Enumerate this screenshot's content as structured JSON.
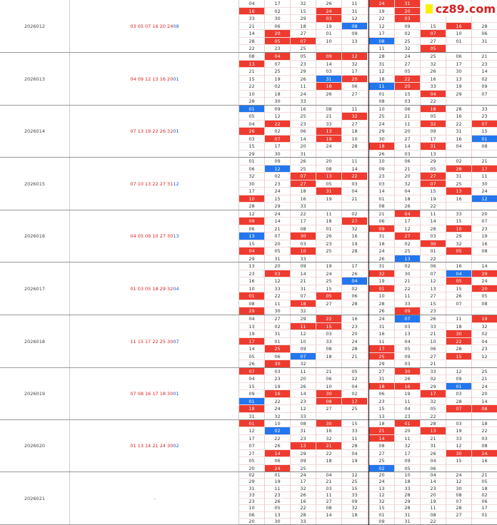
{
  "logo": {
    "text": "cz89.com"
  },
  "rows": [
    {
      "issue": "2026012",
      "red": "03 05 07 16 20 24",
      "blue": "08",
      "grid": [
        [
          "04",
          "17",
          "32",
          "26",
          "11",
          "24",
          "31",
          "20",
          "",
          ""
        ],
        [
          "16",
          "02",
          "15",
          "24",
          "31",
          "19",
          "20",
          "",
          "",
          ""
        ],
        [
          "33",
          "30",
          "29",
          "03",
          "12",
          "22",
          "03",
          "",
          "",
          ""
        ],
        [
          "21",
          "06",
          "18",
          "19",
          "08",
          "12",
          "09",
          "15",
          "16",
          "28"
        ],
        [
          "14",
          "20",
          "27",
          "01",
          "09",
          "17",
          "02",
          "07",
          "10",
          "06"
        ],
        [
          "28",
          "05",
          "07",
          "10",
          "13",
          "08",
          "25",
          "27",
          "01",
          "31"
        ],
        [
          "22",
          "23",
          "25",
          "",
          "",
          "11",
          "32",
          "05",
          "",
          ""
        ]
      ]
    },
    {
      "issue": "2026013",
      "red": "04 09 12 13 16 20",
      "blue": "01",
      "grid": [
        [
          "08",
          "04",
          "05",
          "09",
          "12",
          "28",
          "24",
          "25",
          "06",
          "21"
        ],
        [
          "13",
          "07",
          "23",
          "14",
          "32",
          "31",
          "27",
          "32",
          "17",
          "23"
        ],
        [
          "21",
          "25",
          "29",
          "03",
          "17",
          "12",
          "05",
          "26",
          "30",
          "14"
        ],
        [
          "15",
          "19",
          "26",
          "31",
          "20",
          "18",
          "22",
          "16",
          "13",
          "02"
        ],
        [
          "22",
          "02",
          "11",
          "16",
          "06",
          "11",
          "20",
          "33",
          "19",
          "09"
        ],
        [
          "10",
          "18",
          "24",
          "26",
          "27",
          "01",
          "15",
          "04",
          "29",
          "07"
        ],
        [
          "28",
          "30",
          "33",
          "",
          "",
          "08",
          "03",
          "22",
          "",
          ""
        ]
      ]
    },
    {
      "issue": "2026014",
      "red": "07 13 19 22 26 32",
      "blue": "01",
      "grid": [
        [
          "01",
          "09",
          "16",
          "08",
          "11",
          "10",
          "06",
          "18",
          "28",
          "33"
        ],
        [
          "05",
          "12",
          "25",
          "21",
          "32",
          "25",
          "21",
          "05",
          "16",
          "23"
        ],
        [
          "04",
          "22",
          "23",
          "33",
          "27",
          "24",
          "11",
          "32",
          "22",
          "07"
        ],
        [
          "26",
          "02",
          "06",
          "13",
          "18",
          "29",
          "20",
          "09",
          "31",
          "15"
        ],
        [
          "03",
          "07",
          "14",
          "19",
          "10",
          "30",
          "27",
          "17",
          "16",
          "01"
        ],
        [
          "15",
          "17",
          "20",
          "24",
          "28",
          "18",
          "14",
          "31",
          "04",
          "08"
        ],
        [
          "29",
          "30",
          "31",
          "",
          "",
          "26",
          "03",
          "13",
          "",
          ""
        ]
      ]
    },
    {
      "issue": "2026015",
      "red": "07 10 13 22 27 31",
      "blue": "12",
      "grid": [
        [
          "01",
          "09",
          "26",
          "20",
          "11",
          "10",
          "06",
          "29",
          "02",
          "21"
        ],
        [
          "06",
          "12",
          "25",
          "08",
          "14",
          "09",
          "21",
          "05",
          "28",
          "17"
        ],
        [
          "32",
          "02",
          "07",
          "13",
          "22",
          "23",
          "20",
          "27",
          "31",
          "11"
        ],
        [
          "30",
          "23",
          "27",
          "05",
          "03",
          "03",
          "32",
          "07",
          "25",
          "30"
        ],
        [
          "17",
          "24",
          "18",
          "31",
          "04",
          "14",
          "04",
          "15",
          "13",
          "24"
        ],
        [
          "10",
          "15",
          "16",
          "19",
          "21",
          "01",
          "18",
          "19",
          "16",
          "12"
        ],
        [
          "28",
          "29",
          "33",
          "",
          "",
          "08",
          "26",
          "22",
          "",
          ""
        ]
      ]
    },
    {
      "issue": "2026016",
      "red": "04 05 09 10 27 30",
      "blue": "13",
      "grid": [
        [
          "12",
          "24",
          "22",
          "11",
          "02",
          "21",
          "04",
          "11",
          "33",
          "20"
        ],
        [
          "09",
          "14",
          "17",
          "18",
          "27",
          "06",
          "17",
          "14",
          "15",
          "07"
        ],
        [
          "06",
          "21",
          "08",
          "01",
          "32",
          "09",
          "12",
          "28",
          "10",
          "23"
        ],
        [
          "13",
          "07",
          "30",
          "26",
          "16",
          "31",
          "27",
          "03",
          "29",
          "19"
        ],
        [
          "15",
          "20",
          "03",
          "23",
          "19",
          "18",
          "02",
          "30",
          "32",
          "16"
        ],
        [
          "04",
          "05",
          "10",
          "25",
          "28",
          "24",
          "25",
          "01",
          "05",
          "08"
        ],
        [
          "29",
          "31",
          "33",
          "",
          "",
          "26",
          "13",
          "22",
          "",
          ""
        ]
      ]
    },
    {
      "issue": "2026017",
      "red": "01 03 05 18 29 32",
      "blue": "04",
      "grid": [
        [
          "13",
          "20",
          "09",
          "19",
          "17",
          "31",
          "02",
          "06",
          "16",
          "14"
        ],
        [
          "23",
          "03",
          "14",
          "24",
          "26",
          "32",
          "30",
          "07",
          "04",
          "29"
        ],
        [
          "16",
          "12",
          "21",
          "25",
          "04",
          "19",
          "21",
          "12",
          "05",
          "24"
        ],
        [
          "10",
          "33",
          "31",
          "15",
          "02",
          "01",
          "22",
          "13",
          "15",
          "20"
        ],
        [
          "01",
          "22",
          "07",
          "05",
          "06",
          "10",
          "11",
          "27",
          "26",
          "05"
        ],
        [
          "08",
          "11",
          "18",
          "27",
          "28",
          "28",
          "33",
          "15",
          "07",
          "08"
        ],
        [
          "29",
          "30",
          "32",
          "",
          "",
          "26",
          "09",
          "23",
          "",
          ""
        ]
      ]
    },
    {
      "issue": "2026018",
      "red": "11 15 17 22 25 30",
      "blue": "07",
      "grid": [
        [
          "04",
          "27",
          "29",
          "22",
          "16",
          "24",
          "07",
          "26",
          "11",
          "19"
        ],
        [
          "13",
          "02",
          "11",
          "15",
          "23",
          "31",
          "03",
          "33",
          "18",
          "32"
        ],
        [
          "19",
          "31",
          "12",
          "03",
          "20",
          "16",
          "13",
          "21",
          "30",
          "02"
        ],
        [
          "17",
          "01",
          "10",
          "33",
          "24",
          "11",
          "04",
          "10",
          "22",
          "04"
        ],
        [
          "14",
          "25",
          "09",
          "08",
          "28",
          "17",
          "05",
          "06",
          "28",
          "23"
        ],
        [
          "05",
          "06",
          "07",
          "18",
          "21",
          "25",
          "09",
          "27",
          "15",
          "12"
        ],
        [
          "26",
          "30",
          "32",
          "",
          "",
          "29",
          "03",
          "21",
          "",
          ""
        ]
      ]
    },
    {
      "issue": "2026019",
      "red": "07 08 16 17 18 30",
      "blue": "01",
      "grid": [
        [
          "07",
          "03",
          "11",
          "21",
          "05",
          "27",
          "30",
          "33",
          "12",
          "25"
        ],
        [
          "04",
          "23",
          "20",
          "06",
          "12",
          "31",
          "26",
          "02",
          "09",
          "21"
        ],
        [
          "15",
          "19",
          "26",
          "10",
          "04",
          "18",
          "16",
          "29",
          "01",
          "24"
        ],
        [
          "09",
          "16",
          "14",
          "30",
          "02",
          "06",
          "19",
          "17",
          "03",
          "20"
        ],
        [
          "01",
          "22",
          "23",
          "08",
          "17",
          "23",
          "11",
          "32",
          "28",
          "14"
        ],
        [
          "18",
          "24",
          "12",
          "27",
          "25",
          "15",
          "04",
          "05",
          "07",
          "08"
        ],
        [
          "31",
          "32",
          "33",
          "",
          "",
          "13",
          "23",
          "22",
          "",
          ""
        ]
      ]
    },
    {
      "issue": "2026020",
      "red": "01 13 14 21 24 30",
      "blue": "02",
      "grid": [
        [
          "01",
          "10",
          "08",
          "30",
          "15",
          "18",
          "01",
          "28",
          "03",
          "18"
        ],
        [
          "12",
          "02",
          "31",
          "16",
          "33",
          "21",
          "20",
          "13",
          "19",
          "22"
        ],
        [
          "17",
          "22",
          "23",
          "32",
          "11",
          "14",
          "11",
          "21",
          "33",
          "03"
        ],
        [
          "07",
          "26",
          "13",
          "21",
          "28",
          "08",
          "32",
          "31",
          "12",
          "08"
        ],
        [
          "27",
          "14",
          "29",
          "22",
          "04",
          "27",
          "17",
          "26",
          "30",
          "24"
        ],
        [
          "05",
          "06",
          "09",
          "18",
          "19",
          "25",
          "09",
          "04",
          "15",
          "16"
        ],
        [
          "20",
          "24",
          "25",
          "",
          "",
          "02",
          "05",
          "06",
          "",
          ""
        ]
      ]
    },
    {
      "issue": "2026021",
      "red": "",
      "blue": "",
      "dash": "-",
      "grid": [
        [
          "02",
          "01",
          "24",
          "04",
          "12",
          "20",
          "10",
          "04",
          "24",
          "21"
        ],
        [
          "29",
          "19",
          "17",
          "21",
          "25",
          "24",
          "18",
          "14",
          "12",
          "05"
        ],
        [
          "31",
          "11",
          "32",
          "03",
          "15",
          "13",
          "33",
          "23",
          "30",
          "18"
        ],
        [
          "33",
          "23",
          "26",
          "11",
          "33",
          "12",
          "28",
          "20",
          "08",
          "02"
        ],
        [
          "23",
          "26",
          "16",
          "27",
          "09",
          "32",
          "29",
          "19",
          "07",
          "06"
        ],
        [
          "10",
          "05",
          "22",
          "08",
          "32",
          "15",
          "28",
          "11",
          "28",
          "17"
        ],
        [
          "06",
          "13",
          "28",
          "14",
          "18",
          "01",
          "31",
          "08",
          "27",
          "01"
        ],
        [
          "20",
          "30",
          "33",
          "",
          "",
          "09",
          "31",
          "22",
          "",
          ""
        ]
      ]
    }
  ],
  "highlights_red": {
    "0": [
      [
        0,
        5
      ],
      [
        0,
        6
      ],
      [
        1,
        0
      ],
      [
        1,
        3
      ],
      [
        1,
        6
      ],
      [
        2,
        3
      ],
      [
        2,
        6
      ],
      [
        3,
        8
      ],
      [
        4,
        1
      ],
      [
        4,
        7
      ],
      [
        5,
        1
      ],
      [
        5,
        2
      ],
      [
        6,
        7
      ]
    ],
    "1": [
      [
        0,
        1
      ],
      [
        0,
        3
      ],
      [
        0,
        4
      ],
      [
        1,
        0
      ],
      [
        3,
        4
      ],
      [
        3,
        6
      ],
      [
        4,
        3
      ],
      [
        4,
        6
      ],
      [
        5,
        7
      ]
    ],
    "2": [
      [
        0,
        7
      ],
      [
        1,
        4
      ],
      [
        2,
        1
      ],
      [
        2,
        7
      ],
      [
        2,
        9
      ],
      [
        3,
        0
      ],
      [
        3,
        3
      ],
      [
        4,
        1
      ],
      [
        4,
        3
      ],
      [
        5,
        5
      ],
      [
        5,
        7
      ]
    ],
    "3": [
      [
        1,
        8
      ],
      [
        1,
        9
      ],
      [
        2,
        2
      ],
      [
        2,
        3
      ],
      [
        2,
        4
      ],
      [
        2,
        7
      ],
      [
        3,
        2
      ],
      [
        3,
        7
      ],
      [
        4,
        3
      ],
      [
        4,
        8
      ],
      [
        5,
        0
      ]
    ],
    "4": [
      [
        0,
        6
      ],
      [
        1,
        0
      ],
      [
        1,
        4
      ],
      [
        2,
        5
      ],
      [
        2,
        8
      ],
      [
        3,
        2
      ],
      [
        3,
        6
      ],
      [
        4,
        7
      ],
      [
        5,
        0
      ],
      [
        5,
        2
      ],
      [
        5,
        8
      ]
    ],
    "5": [
      [
        1,
        1
      ],
      [
        1,
        5
      ],
      [
        1,
        9
      ],
      [
        2,
        8
      ],
      [
        3,
        5
      ],
      [
        3,
        9
      ],
      [
        4,
        0
      ],
      [
        4,
        3
      ],
      [
        5,
        2
      ],
      [
        6,
        0
      ],
      [
        6,
        6
      ]
    ],
    "6": [
      [
        0,
        3
      ],
      [
        0,
        9
      ],
      [
        1,
        2
      ],
      [
        1,
        3
      ],
      [
        2,
        8
      ],
      [
        3,
        0
      ],
      [
        3,
        8
      ],
      [
        4,
        1
      ],
      [
        4,
        5
      ],
      [
        5,
        5
      ],
      [
        5,
        8
      ],
      [
        6,
        1
      ]
    ],
    "7": [
      [
        0,
        0
      ],
      [
        0,
        6
      ],
      [
        2,
        5
      ],
      [
        2,
        6
      ],
      [
        3,
        1
      ],
      [
        3,
        3
      ],
      [
        3,
        7
      ],
      [
        4,
        3
      ],
      [
        4,
        4
      ],
      [
        5,
        0
      ],
      [
        5,
        8
      ],
      [
        5,
        9
      ]
    ],
    "8": [
      [
        0,
        0
      ],
      [
        0,
        3
      ],
      [
        0,
        6
      ],
      [
        1,
        5
      ],
      [
        1,
        7
      ],
      [
        2,
        5
      ],
      [
        3,
        2
      ],
      [
        3,
        3
      ],
      [
        4,
        1
      ],
      [
        4,
        8
      ],
      [
        4,
        9
      ],
      [
        6,
        1
      ]
    ],
    "9": []
  },
  "highlights_blue": {
    "0": [
      [
        3,
        4
      ],
      [
        5,
        5
      ]
    ],
    "1": [
      [
        3,
        3
      ],
      [
        4,
        5
      ]
    ],
    "2": [
      [
        0,
        0
      ],
      [
        4,
        9
      ]
    ],
    "3": [
      [
        1,
        1
      ],
      [
        5,
        9
      ]
    ],
    "4": [
      [
        3,
        0
      ],
      [
        6,
        6
      ]
    ],
    "5": [
      [
        1,
        8
      ],
      [
        2,
        4
      ]
    ],
    "6": [
      [
        0,
        6
      ],
      [
        5,
        2
      ]
    ],
    "7": [
      [
        2,
        8
      ],
      [
        4,
        0
      ]
    ],
    "8": [
      [
        1,
        1
      ],
      [
        6,
        5
      ]
    ],
    "9": []
  }
}
